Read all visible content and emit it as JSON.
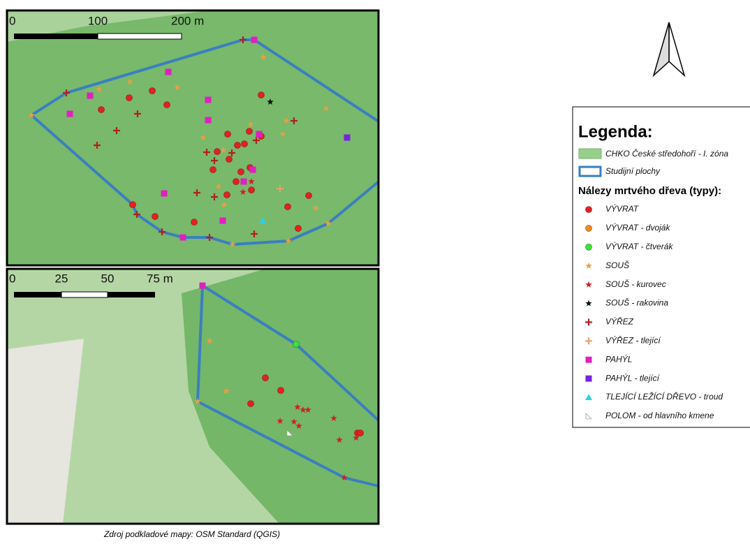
{
  "maps": [
    {
      "scale_labels": [
        "0",
        "100",
        "200 m"
      ]
    },
    {
      "scale_labels": [
        "0",
        "25",
        "50",
        "75 m"
      ]
    }
  ],
  "legend": {
    "title": "Legenda:",
    "layers": [
      "CHKO České středohoří - I. zóna",
      "Studijní plochy"
    ],
    "section": "Nálezy mrtvého dřeva (typy):",
    "items": [
      "VÝVRAT",
      "VÝVRAT - dvoják",
      "VÝVRAT - čtverák",
      "SOUŠ",
      "SOUŠ - kurovec",
      "SOUŠ - rakovina",
      "VÝŘEZ",
      "VÝŘEZ - tlející",
      "PAHÝL",
      "PAHÝL - tlející",
      "TLEJÍCÍ LEŽÍCÍ DŘEVO - troud",
      "POLOM - od hlavního kmene"
    ]
  },
  "source": "Zdroj podkladové mapy: OSM Standard (QGIS)"
}
